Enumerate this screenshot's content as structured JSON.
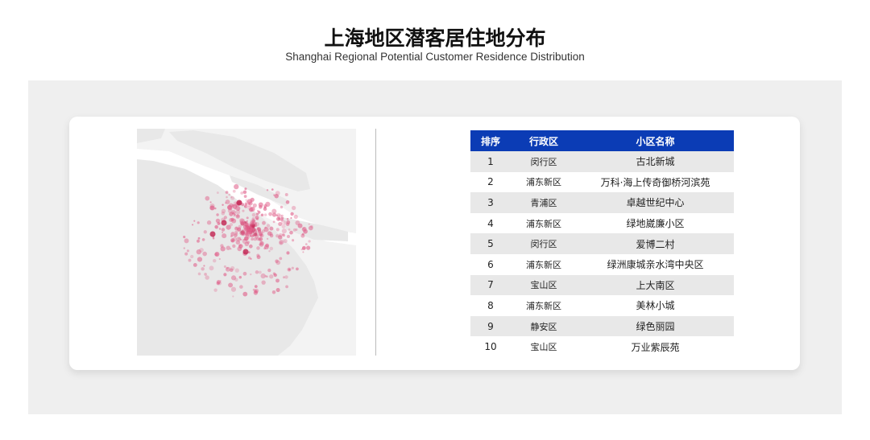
{
  "header": {
    "title": "上海地区潜客居住地分布",
    "subtitle": "Shanghai Regional Potential Customer Residence Distribution"
  },
  "colors": {
    "table_header": "#0b3cb5",
    "dot": "#e0608a",
    "dot_dark": "#c0204f",
    "land": "#e8e8e8"
  },
  "map": {
    "type": "point-density-map"
  },
  "table": {
    "columns": [
      "排序",
      "行政区",
      "小区名称"
    ],
    "rows": [
      [
        "1",
        "闵行区",
        "古北新城"
      ],
      [
        "2",
        "浦东新区",
        "万科·海上传奇御桥河滨苑"
      ],
      [
        "3",
        "青浦区",
        "卓越世纪中心"
      ],
      [
        "4",
        "浦东新区",
        "绿地崴廉小区"
      ],
      [
        "5",
        "闵行区",
        "爱博二村"
      ],
      [
        "6",
        "浦东新区",
        "绿洲康城亲水湾中央区"
      ],
      [
        "7",
        "宝山区",
        "上大南区"
      ],
      [
        "8",
        "浦东新区",
        "美林小城"
      ],
      [
        "9",
        "静安区",
        "绿色丽园"
      ],
      [
        "10",
        "宝山区",
        "万业紫辰苑"
      ]
    ]
  }
}
